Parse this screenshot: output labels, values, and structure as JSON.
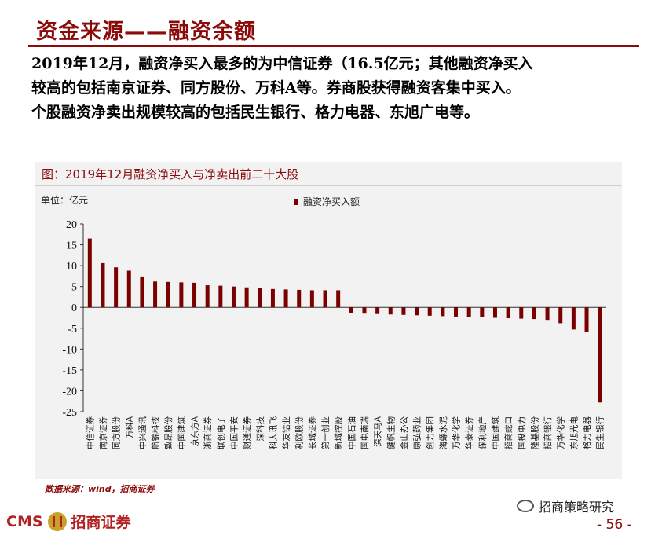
{
  "header": {
    "title": "资金来源——融资余额"
  },
  "description": [
    "2019年12月，融资净买入最多的为中信证券（16.5亿元；其他融资净买入",
    "较高的包括南京证券、同方股份、万科A等。券商股获得融资客集中买入。",
    "个股融资净卖出规模较高的包括民生银行、格力电器、东旭广电等。"
  ],
  "chart_data": {
    "type": "bar",
    "title": "图：2019年12月融资净买入与净卖出前二十大股",
    "unit_label": "单位：亿元",
    "legend": "融资净买入额",
    "color": "#7b0000",
    "ylim": [
      -25,
      20
    ],
    "yticks": [
      20,
      15,
      10,
      5,
      0,
      -5,
      -10,
      -15,
      -20,
      -25
    ],
    "categories": [
      "中信证券",
      "南京证券",
      "同方股份",
      "万科A",
      "中兴通讯",
      "航锦科技",
      "致昂股份",
      "中国建筑",
      "京东方A",
      "浙商证券",
      "联创电子",
      "中国平安",
      "财通证券",
      "深科技",
      "科大讯飞",
      "华友钴业",
      "利欧股份",
      "长城证券",
      "第一创业",
      "新城控股",
      "中国石油",
      "国电南瑞",
      "深天马A",
      "健帆生物",
      "金山办公",
      "康弘药业",
      "创力集团",
      "海螺水泥",
      "万华化学",
      "华泰证券",
      "保利地产",
      "中国建筑",
      "招商蛇口",
      "国投电力",
      "隆基股份",
      "招商银行",
      "万华化学",
      "东旭光电",
      "格力电器",
      "民生银行"
    ],
    "values": [
      16.5,
      10.6,
      9.6,
      8.8,
      7.4,
      6.2,
      6.1,
      6.0,
      5.9,
      5.3,
      5.2,
      5.0,
      4.8,
      4.6,
      4.4,
      4.3,
      4.2,
      4.1,
      4.1,
      4.1,
      -1.4,
      -1.5,
      -1.6,
      -1.7,
      -1.8,
      -1.9,
      -2.0,
      -2.1,
      -2.2,
      -2.3,
      -2.4,
      -2.5,
      -2.6,
      -2.7,
      -2.8,
      -3.0,
      -3.8,
      -5.3,
      -5.9,
      -22.8
    ]
  },
  "source": "数据来源：wind，招商证券",
  "footer": {
    "logo_text": "CMS",
    "company": "招商证券",
    "wechat": "招商策略研究",
    "page": "- 56 -"
  }
}
